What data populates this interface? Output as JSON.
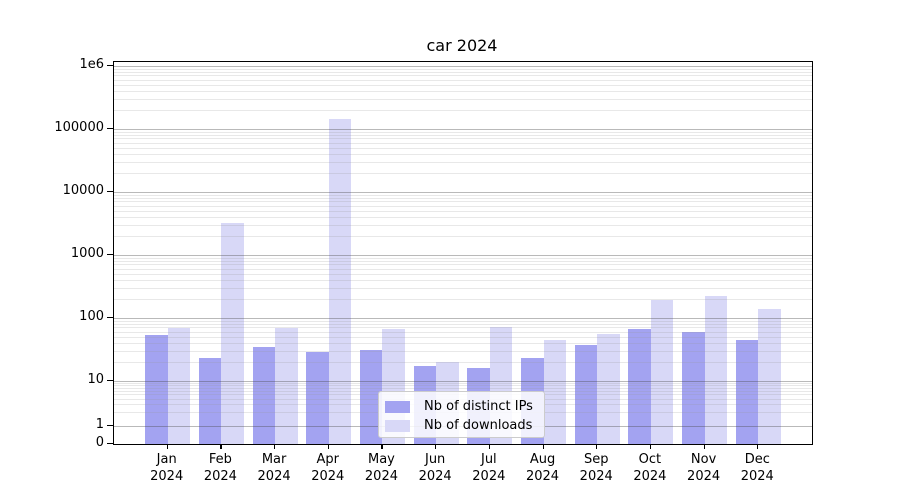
{
  "title": "car 2024",
  "legend": {
    "items": [
      {
        "label": "Nb of distinct IPs",
        "color": "#a3a3f1"
      },
      {
        "label": "Nb of downloads",
        "color": "#d8d8f7"
      }
    ]
  },
  "chart_data": {
    "type": "bar",
    "title": "car 2024",
    "categories": [
      "Jan 2024",
      "Feb 2024",
      "Mar 2024",
      "Apr 2024",
      "May 2024",
      "Jun 2024",
      "Jul 2024",
      "Aug 2024",
      "Sep 2024",
      "Oct 2024",
      "Nov 2024",
      "Dec 2024"
    ],
    "series": [
      {
        "name": "Nb of distinct IPs",
        "color": "#a3a3f1",
        "values": [
          54,
          23,
          34,
          29,
          31,
          17,
          16,
          23,
          37,
          67,
          60,
          44
        ]
      },
      {
        "name": "Nb of downloads",
        "color": "#d8d8f7",
        "values": [
          69,
          3200,
          68,
          145000,
          66,
          20,
          72,
          44,
          55,
          190,
          225,
          135
        ]
      }
    ],
    "yscale": "log",
    "ylim": [
      0,
      1000000
    ],
    "y_tick_labels": [
      "1e6",
      "100000",
      "10000",
      "1000",
      "100",
      "10",
      "1",
      "0"
    ],
    "y_tick_values": [
      1000000,
      100000,
      10000,
      1000,
      100,
      10,
      1,
      0
    ],
    "grid": true,
    "legend_position": "lower center",
    "xlabel": "",
    "ylabel": ""
  }
}
